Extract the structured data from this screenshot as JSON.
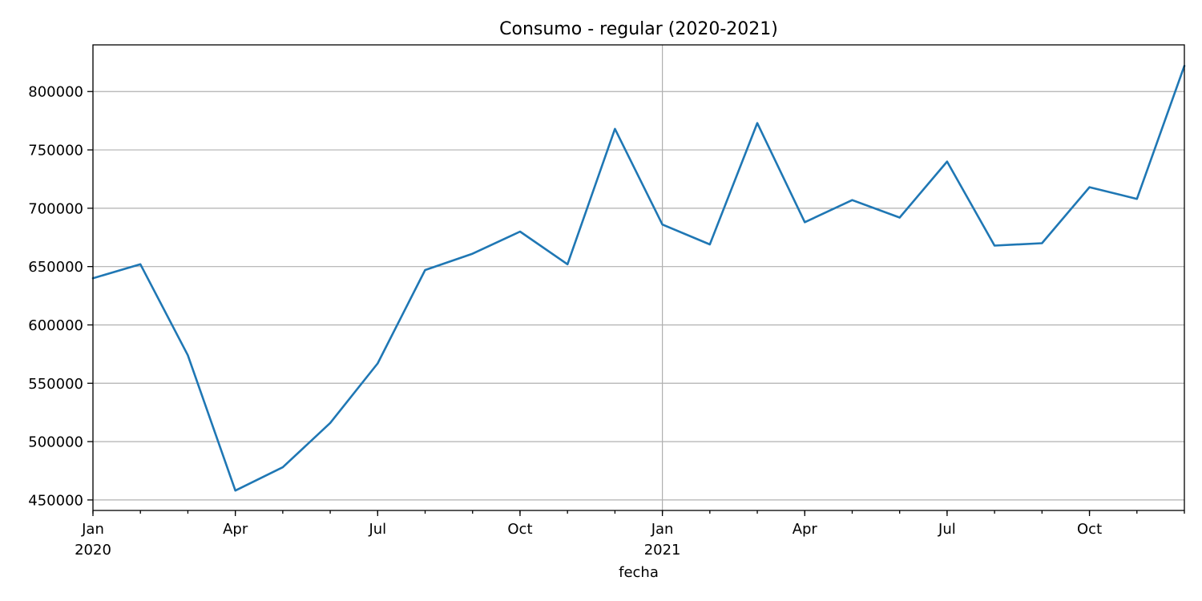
{
  "chart_data": {
    "type": "line",
    "title": "Consumo - regular (2020-2021)",
    "xlabel": "fecha",
    "ylabel": "",
    "x": [
      "2020-01",
      "2020-02",
      "2020-03",
      "2020-04",
      "2020-05",
      "2020-06",
      "2020-07",
      "2020-08",
      "2020-09",
      "2020-10",
      "2020-11",
      "2020-12",
      "2021-01",
      "2021-02",
      "2021-03",
      "2021-04",
      "2021-05",
      "2021-06",
      "2021-07",
      "2021-08",
      "2021-09",
      "2021-10",
      "2021-11",
      "2021-12"
    ],
    "series": [
      {
        "color": "#1f77b4",
        "values": [
          640000,
          652000,
          574000,
          458000,
          478000,
          516000,
          567000,
          647000,
          661000,
          680000,
          652000,
          768000,
          686000,
          669000,
          773000,
          688000,
          707000,
          692000,
          740000,
          668000,
          670000,
          718000,
          708000,
          822000
        ]
      }
    ],
    "ylim": [
      441000,
      840000
    ],
    "yticks": [
      {
        "value": 450000,
        "label": "450000"
      },
      {
        "value": 500000,
        "label": "500000"
      },
      {
        "value": 550000,
        "label": "550000"
      },
      {
        "value": 600000,
        "label": "600000"
      },
      {
        "value": 650000,
        "label": "650000"
      },
      {
        "value": 700000,
        "label": "700000"
      },
      {
        "value": 750000,
        "label": "750000"
      },
      {
        "value": 800000,
        "label": "800000"
      }
    ],
    "xticks_major": [
      {
        "index": 0,
        "label": "Jan",
        "sublabel": "2020"
      },
      {
        "index": 3,
        "label": "Apr",
        "sublabel": ""
      },
      {
        "index": 6,
        "label": "Jul",
        "sublabel": ""
      },
      {
        "index": 9,
        "label": "Oct",
        "sublabel": ""
      },
      {
        "index": 12,
        "label": "Jan",
        "sublabel": "2021"
      },
      {
        "index": 15,
        "label": "Apr",
        "sublabel": ""
      },
      {
        "index": 18,
        "label": "Jul",
        "sublabel": ""
      },
      {
        "index": 21,
        "label": "Oct",
        "sublabel": ""
      }
    ],
    "grid": {
      "y": true,
      "x_at_year_start": true
    },
    "legend": "none"
  }
}
